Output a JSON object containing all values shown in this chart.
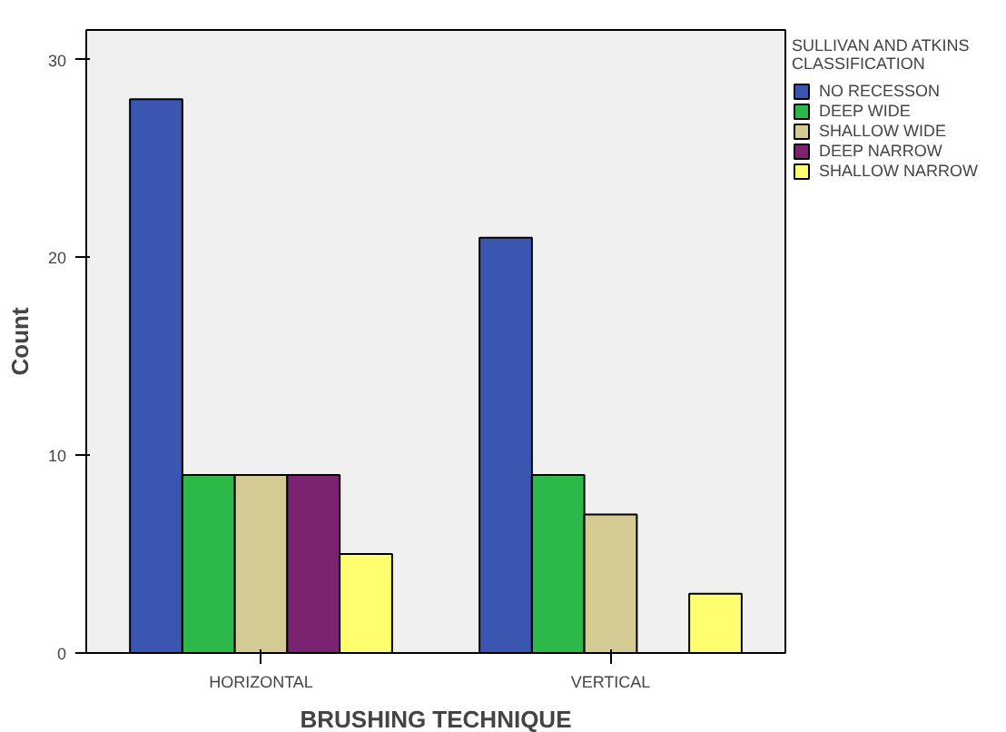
{
  "chart_data": {
    "type": "bar",
    "xlabel": "BRUSHING TECHNIQUE",
    "ylabel": "Count",
    "legend_title": "SULLIVAN AND ATKINS CLASSIFICATION",
    "categories": [
      "HORIZONTAL",
      "VERTICAL"
    ],
    "series": [
      {
        "name": "NO RECESSON",
        "color": "#3a56b0",
        "values": [
          28,
          21
        ]
      },
      {
        "name": "DEEP WIDE",
        "color": "#2db84a",
        "values": [
          9,
          9
        ]
      },
      {
        "name": "SHALLOW WIDE",
        "color": "#d4cc94",
        "values": [
          9,
          7
        ]
      },
      {
        "name": "DEEP NARROW",
        "color": "#7b2270",
        "values": [
          9,
          null
        ]
      },
      {
        "name": "SHALLOW NARROW",
        "color": "#ffff70",
        "values": [
          5,
          3
        ]
      }
    ],
    "ylim": [
      0,
      31.5
    ],
    "yticks": [
      0,
      10,
      20,
      30
    ],
    "legend": "right"
  }
}
